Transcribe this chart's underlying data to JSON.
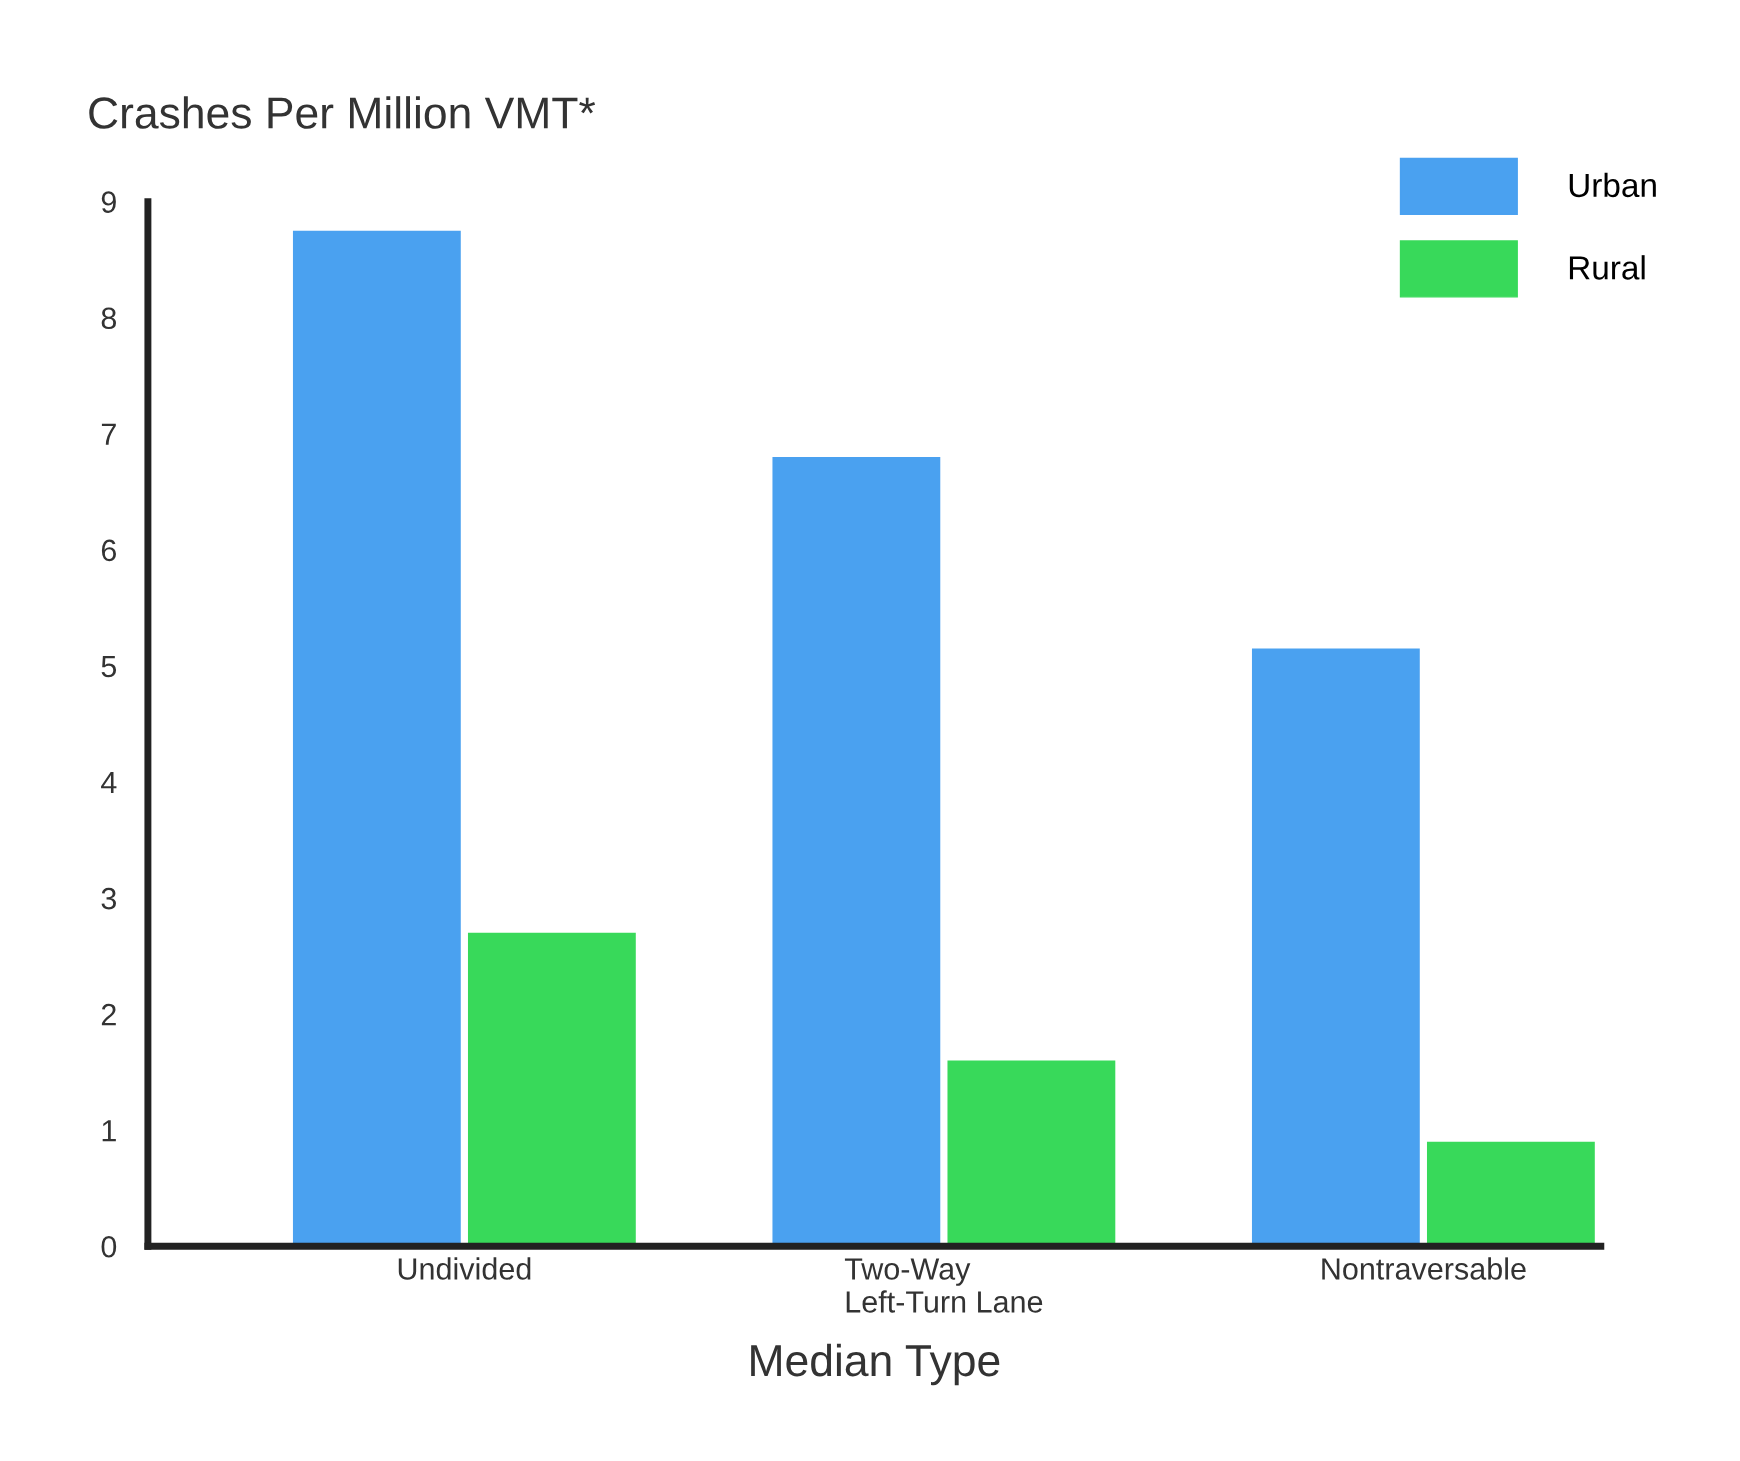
{
  "chart_data": {
    "type": "bar",
    "title": "Crashes Per Million VMT*",
    "xlabel": "Median Type",
    "categories": [
      "Undivided",
      "Two-Way\nLeft-Turn Lane",
      "Nontraversable"
    ],
    "series": [
      {
        "name": "Urban",
        "color": "#4aa1f0",
        "values": [
          8.75,
          6.8,
          5.15
        ]
      },
      {
        "name": "Rural",
        "color": "#38d95a",
        "values": [
          2.7,
          1.6,
          0.9
        ]
      }
    ],
    "ylim": [
      0,
      9
    ],
    "yticks": [
      0,
      1,
      2,
      3,
      4,
      5,
      6,
      7,
      8,
      9
    ],
    "grid": false,
    "legend": "top right"
  }
}
